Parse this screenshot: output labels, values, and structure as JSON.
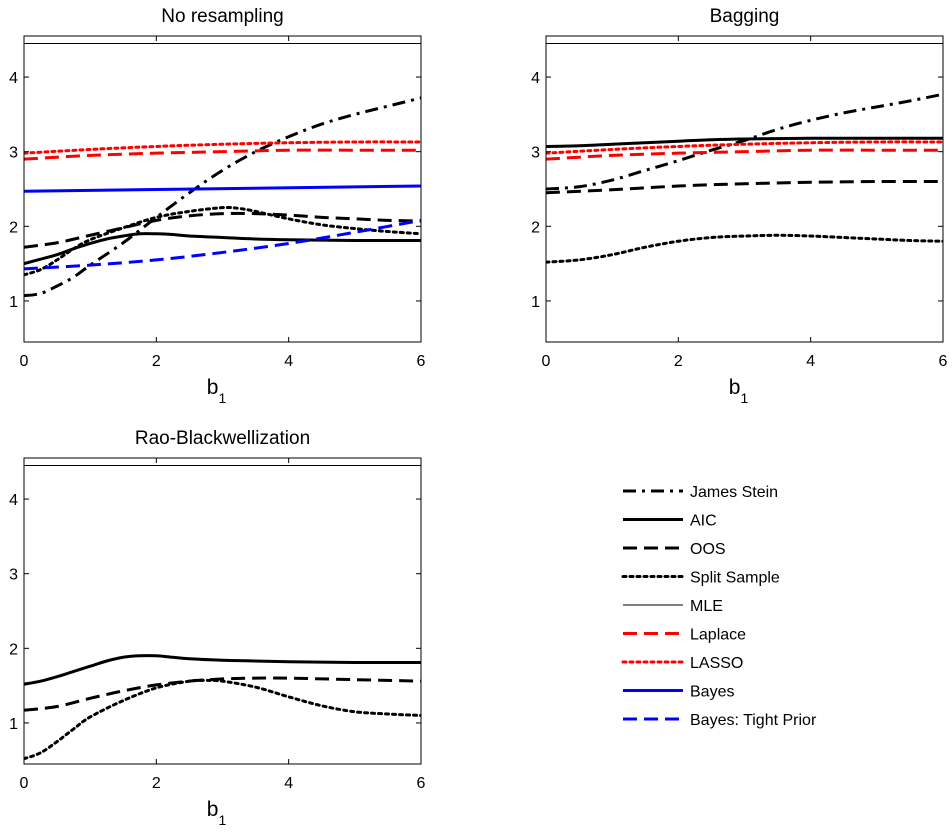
{
  "chart_data": [
    {
      "type": "line",
      "title": "No resampling",
      "xlabel": "b",
      "xlabel_subscript": "1",
      "ylabel": "",
      "xlim": [
        0,
        6
      ],
      "ylim": [
        0.45,
        4.55
      ],
      "xticks": [
        0,
        2,
        4,
        6
      ],
      "yticks": [
        1,
        2,
        3,
        4
      ],
      "series": [
        {
          "name": "James Stein",
          "x": [
            0,
            0.25,
            0.5,
            0.75,
            1,
            1.5,
            2,
            2.5,
            3,
            3.5,
            4,
            4.5,
            5,
            5.5,
            6
          ],
          "values": [
            1.07,
            1.1,
            1.2,
            1.32,
            1.48,
            1.78,
            2.12,
            2.45,
            2.75,
            3.0,
            3.2,
            3.37,
            3.5,
            3.61,
            3.72
          ]
        },
        {
          "name": "AIC",
          "x": [
            0,
            0.25,
            0.5,
            0.75,
            1,
            1.25,
            1.5,
            1.75,
            2,
            2.25,
            2.5,
            3,
            3.5,
            4,
            5,
            6
          ],
          "values": [
            1.5,
            1.56,
            1.62,
            1.7,
            1.77,
            1.83,
            1.87,
            1.9,
            1.9,
            1.89,
            1.87,
            1.85,
            1.83,
            1.82,
            1.81,
            1.81
          ]
        },
        {
          "name": "OOS",
          "x": [
            0,
            0.5,
            1,
            1.5,
            2,
            2.5,
            3,
            3.5,
            4,
            4.5,
            5,
            5.5,
            6
          ],
          "values": [
            1.72,
            1.78,
            1.88,
            1.98,
            2.08,
            2.14,
            2.17,
            2.17,
            2.15,
            2.12,
            2.1,
            2.08,
            2.07
          ]
        },
        {
          "name": "Split Sample",
          "x": [
            0,
            0.25,
            0.5,
            0.75,
            1,
            1.5,
            2,
            2.5,
            3,
            3.25,
            3.5,
            4,
            4.5,
            5,
            5.5,
            6
          ],
          "values": [
            1.35,
            1.42,
            1.55,
            1.7,
            1.82,
            1.98,
            2.12,
            2.2,
            2.25,
            2.24,
            2.2,
            2.1,
            2.02,
            1.97,
            1.93,
            1.9
          ]
        },
        {
          "name": "MLE",
          "x": [
            0,
            6
          ],
          "values": [
            4.45,
            4.45
          ]
        },
        {
          "name": "Laplace",
          "x": [
            0,
            1,
            2,
            3,
            4,
            5,
            6
          ],
          "values": [
            2.9,
            2.95,
            2.98,
            3.0,
            3.02,
            3.02,
            3.02
          ]
        },
        {
          "name": "LASSO",
          "x": [
            0,
            1,
            2,
            3,
            4,
            5,
            6
          ],
          "values": [
            2.98,
            3.03,
            3.07,
            3.1,
            3.12,
            3.13,
            3.13
          ]
        },
        {
          "name": "Bayes",
          "x": [
            0,
            6
          ],
          "values": [
            2.47,
            2.54
          ]
        },
        {
          "name": "Bayes: Tight Prior",
          "x": [
            0,
            1,
            2,
            3,
            4,
            5,
            6
          ],
          "values": [
            1.43,
            1.48,
            1.55,
            1.65,
            1.77,
            1.92,
            2.08
          ]
        }
      ]
    },
    {
      "type": "line",
      "title": "Bagging",
      "xlabel": "b",
      "xlabel_subscript": "1",
      "ylabel": "",
      "xlim": [
        0,
        6
      ],
      "ylim": [
        0.45,
        4.55
      ],
      "xticks": [
        0,
        2,
        4,
        6
      ],
      "yticks": [
        1,
        2,
        3,
        4
      ],
      "series": [
        {
          "name": "James Stein",
          "x": [
            0,
            0.5,
            1,
            1.5,
            2,
            2.5,
            3,
            3.5,
            4,
            4.5,
            5,
            5.5,
            6
          ],
          "values": [
            2.5,
            2.53,
            2.62,
            2.75,
            2.88,
            3.02,
            3.15,
            3.3,
            3.42,
            3.52,
            3.6,
            3.68,
            3.77
          ]
        },
        {
          "name": "AIC",
          "x": [
            0,
            0.5,
            1,
            1.5,
            2,
            2.5,
            3,
            4,
            5,
            6
          ],
          "values": [
            3.07,
            3.08,
            3.1,
            3.12,
            3.14,
            3.16,
            3.17,
            3.18,
            3.18,
            3.18
          ]
        },
        {
          "name": "OOS",
          "x": [
            0,
            1,
            2,
            3,
            4,
            5,
            6
          ],
          "values": [
            2.45,
            2.49,
            2.54,
            2.57,
            2.59,
            2.6,
            2.6
          ]
        },
        {
          "name": "Split Sample",
          "x": [
            0,
            0.5,
            1,
            1.5,
            2,
            2.5,
            3,
            3.5,
            4,
            4.5,
            5,
            5.5,
            6
          ],
          "values": [
            1.52,
            1.55,
            1.62,
            1.72,
            1.8,
            1.85,
            1.87,
            1.88,
            1.87,
            1.85,
            1.83,
            1.81,
            1.8
          ]
        },
        {
          "name": "MLE",
          "x": [
            0,
            6
          ],
          "values": [
            4.45,
            4.45
          ]
        },
        {
          "name": "Laplace",
          "x": [
            0,
            1,
            2,
            3,
            4,
            5,
            6
          ],
          "values": [
            2.9,
            2.95,
            2.98,
            3.0,
            3.02,
            3.02,
            3.02
          ]
        },
        {
          "name": "LASSO",
          "x": [
            0,
            1,
            2,
            3,
            4,
            5,
            6
          ],
          "values": [
            2.98,
            3.03,
            3.07,
            3.1,
            3.12,
            3.13,
            3.13
          ]
        }
      ]
    },
    {
      "type": "line",
      "title": "Rao-Blackwellization",
      "xlabel": "b",
      "xlabel_subscript": "1",
      "ylabel": "",
      "xlim": [
        0,
        6
      ],
      "ylim": [
        0.45,
        4.55
      ],
      "xticks": [
        0,
        2,
        4,
        6
      ],
      "yticks": [
        1,
        2,
        3,
        4
      ],
      "series": [
        {
          "name": "AIC",
          "x": [
            0,
            0.25,
            0.5,
            0.75,
            1,
            1.25,
            1.5,
            1.75,
            2,
            2.25,
            2.5,
            3,
            3.5,
            4,
            5,
            6
          ],
          "values": [
            1.52,
            1.56,
            1.62,
            1.69,
            1.76,
            1.83,
            1.88,
            1.9,
            1.9,
            1.88,
            1.86,
            1.84,
            1.83,
            1.82,
            1.81,
            1.81
          ]
        },
        {
          "name": "OOS",
          "x": [
            0,
            0.5,
            1,
            1.5,
            2,
            2.5,
            3,
            3.5,
            4,
            5,
            6
          ],
          "values": [
            1.17,
            1.22,
            1.33,
            1.43,
            1.51,
            1.56,
            1.59,
            1.6,
            1.6,
            1.58,
            1.56
          ]
        },
        {
          "name": "Split Sample",
          "x": [
            0,
            0.25,
            0.5,
            0.75,
            1,
            1.5,
            2,
            2.5,
            2.75,
            3,
            3.5,
            4,
            4.5,
            5,
            5.5,
            6
          ],
          "values": [
            0.52,
            0.6,
            0.75,
            0.92,
            1.08,
            1.3,
            1.47,
            1.56,
            1.57,
            1.56,
            1.48,
            1.35,
            1.23,
            1.15,
            1.12,
            1.1
          ]
        },
        {
          "name": "MLE",
          "x": [
            0,
            6
          ],
          "values": [
            4.45,
            4.45
          ]
        }
      ]
    }
  ],
  "legend": [
    {
      "name": "James Stein",
      "color": "#000000",
      "style": "dashdot",
      "width": 3
    },
    {
      "name": "AIC",
      "color": "#000000",
      "style": "solid",
      "width": 3
    },
    {
      "name": "OOS",
      "color": "#000000",
      "style": "dashed",
      "width": 3
    },
    {
      "name": "Split Sample",
      "color": "#000000",
      "style": "dotted",
      "width": 3
    },
    {
      "name": "MLE",
      "color": "#000000",
      "style": "solid",
      "width": 1
    },
    {
      "name": "Laplace",
      "color": "#ff0000",
      "style": "dashed",
      "width": 3
    },
    {
      "name": "LASSO",
      "color": "#ff0000",
      "style": "dotted",
      "width": 3
    },
    {
      "name": "Bayes",
      "color": "#0000ff",
      "style": "solid",
      "width": 3
    },
    {
      "name": "Bayes: Tight Prior",
      "color": "#0000ff",
      "style": "dashed",
      "width": 3
    }
  ]
}
